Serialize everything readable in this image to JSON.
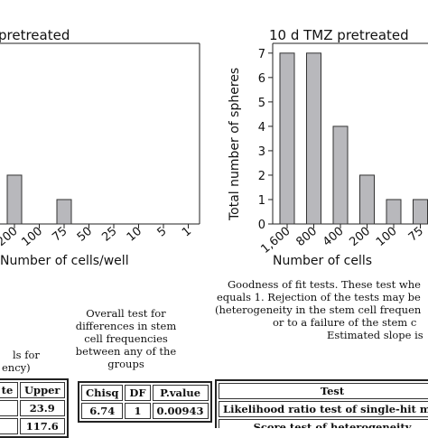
{
  "chart_data": [
    {
      "type": "bar",
      "title": "pretreated",
      "categories": [
        "200",
        "100",
        "75",
        "50",
        "25",
        "10",
        "5",
        "1"
      ],
      "visible_bars": [
        {
          "category": "200",
          "value": 2
        },
        {
          "category": "75",
          "value": 1
        }
      ],
      "xlabel": "Number of cells/well",
      "ylabel": "",
      "grid": false
    },
    {
      "type": "bar",
      "title": "10 d TMZ pretreated",
      "categories": [
        "1,600",
        "800",
        "400",
        "200",
        "100",
        "75"
      ],
      "values": [
        7,
        7,
        4,
        2,
        1,
        1
      ],
      "ylim": [
        0,
        7.4
      ],
      "yticks": [
        0,
        1,
        2,
        3,
        4,
        5,
        6,
        7
      ],
      "xlabel": "Number of cells",
      "ylabel": "Total number of spheres",
      "grid": false
    }
  ],
  "left_axis_label": "Number of cells/well",
  "right_axis_label": "Number of cells",
  "left_tick_labels": [
    "200",
    "100",
    "75",
    "50",
    "25",
    "10",
    "5",
    "1"
  ],
  "right_tick_labels": [
    "1,600",
    "800",
    "400",
    "200",
    "100",
    "75"
  ],
  "overall_test": {
    "lines": [
      "Overall test for",
      "differences in stem",
      "cell frequencies",
      "between any of the",
      "groups"
    ],
    "table": {
      "headers": [
        "Chisq",
        "DF",
        "P.value"
      ],
      "row": [
        "6.74",
        "1",
        "0.00943"
      ]
    }
  },
  "goodness_fit": {
    "lines": [
      "Goodness of fit tests. These test whe",
      "equals 1. Rejection of the tests may be",
      "(heterogeneity in the stem cell frequen",
      "or to a failure of the stem c",
      "Estimated slope is"
    ],
    "table": {
      "header": "Test",
      "rows": [
        "Likelihood ratio test of single-hit m",
        "Score test of heterogeneity"
      ]
    }
  },
  "ci_fragment": {
    "lines": [
      "ls for",
      "ency)"
    ],
    "table": {
      "headers": [
        "te",
        "Upper"
      ],
      "rows": [
        [
          "",
          "23.9"
        ],
        [
          "",
          "117.6"
        ]
      ]
    }
  }
}
